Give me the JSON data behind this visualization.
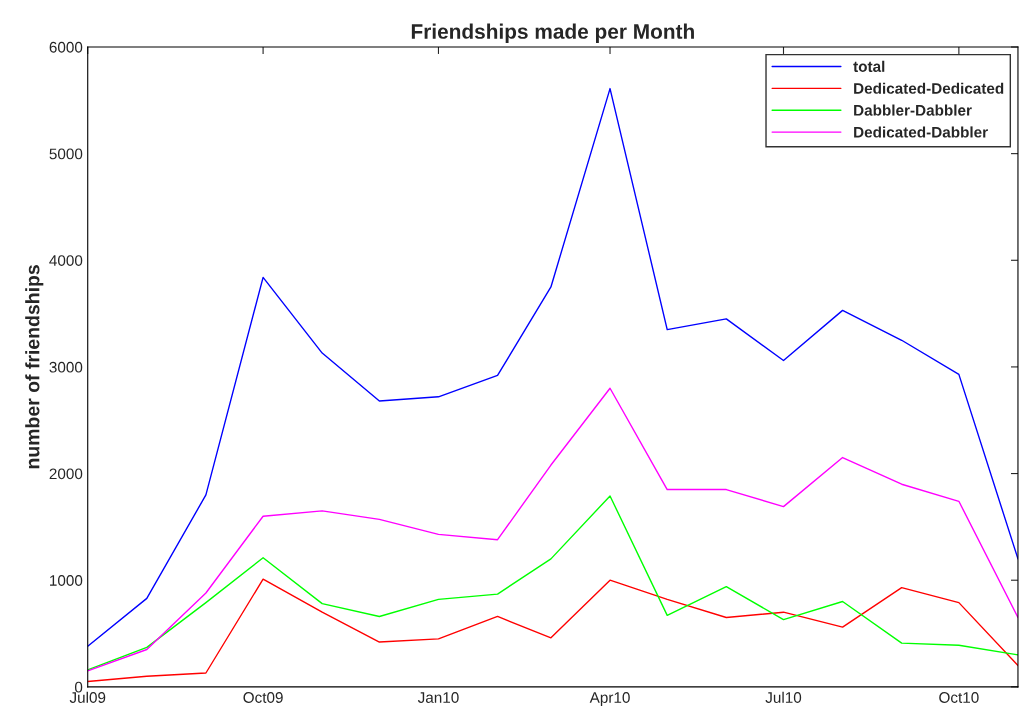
{
  "chart_data": {
    "type": "line",
    "title": "Friendships made per Month",
    "ylabel": "number of friendships",
    "x": [
      "2009-07",
      "2009-08",
      "2009-09",
      "2009-10",
      "2009-11",
      "2009-12",
      "2010-01",
      "2010-02",
      "2010-03",
      "2010-04",
      "2010-05",
      "2010-06",
      "2010-07",
      "2010-08",
      "2010-09",
      "2010-10",
      "2010-11"
    ],
    "series": [
      {
        "name": "total",
        "color": "#0000ff",
        "values": [
          380,
          830,
          1800,
          3840,
          3130,
          2680,
          2720,
          2920,
          3750,
          5610,
          3350,
          3450,
          3060,
          3530,
          3250,
          2930,
          1200
        ]
      },
      {
        "name": "Dedicated-Dedicated",
        "color": "#ff0000",
        "values": [
          50,
          100,
          130,
          1010,
          700,
          420,
          450,
          660,
          460,
          1000,
          820,
          650,
          700,
          560,
          930,
          790,
          200
        ]
      },
      {
        "name": "Dabbler-Dabbler",
        "color": "#00ff00",
        "values": [
          160,
          370,
          790,
          1210,
          780,
          660,
          820,
          870,
          1200,
          1790,
          670,
          940,
          630,
          800,
          410,
          390,
          300
        ]
      },
      {
        "name": "Dedicated-Dabbler",
        "color": "#ff00ff",
        "values": [
          150,
          350,
          880,
          1600,
          1650,
          1570,
          1430,
          1380,
          2080,
          2800,
          1850,
          1850,
          1690,
          2150,
          1900,
          1740,
          650
        ]
      }
    ],
    "xlim": [
      "2009-07",
      "2010-11"
    ],
    "xticks": [
      {
        "value": "2009-07",
        "label": "Jul09"
      },
      {
        "value": "2009-10",
        "label": "Oct09"
      },
      {
        "value": "2010-01",
        "label": "Jan10"
      },
      {
        "value": "2010-04",
        "label": "Apr10"
      },
      {
        "value": "2010-07",
        "label": "Jul10"
      },
      {
        "value": "2010-10",
        "label": "Oct10"
      }
    ],
    "ylim": [
      0,
      6000
    ],
    "yticks": [
      0,
      1000,
      2000,
      3000,
      4000,
      5000,
      6000
    ],
    "grid": false,
    "legend": "top right",
    "marker": "none",
    "line_style": "solid"
  }
}
